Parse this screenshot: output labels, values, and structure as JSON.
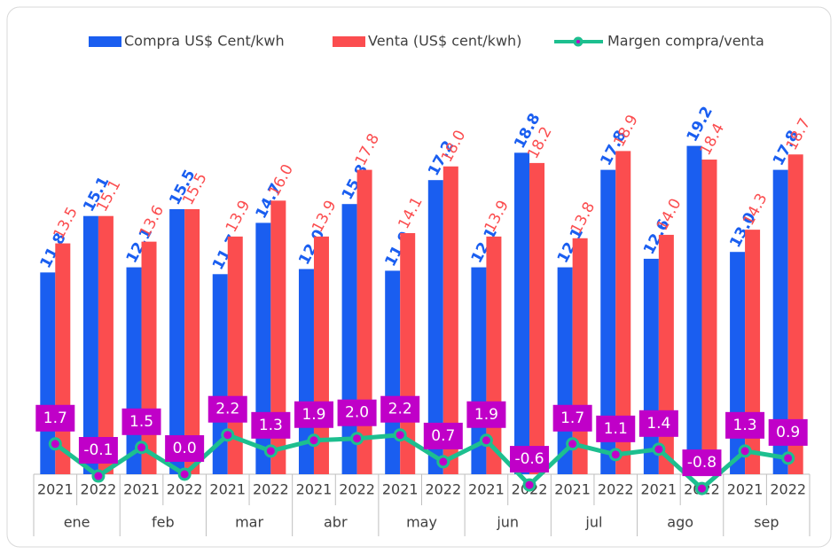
{
  "chart_data": {
    "type": "bar",
    "categories": [
      "2021",
      "2022",
      "2021",
      "2022",
      "2021",
      "2022",
      "2021",
      "2022",
      "2021",
      "2022",
      "2021",
      "2022",
      "2021",
      "2022",
      "2021",
      "2022",
      "2021",
      "2022"
    ],
    "category_groups": [
      "ene",
      "feb",
      "mar",
      "abr",
      "may",
      "jun",
      "jul",
      "ago",
      "sep"
    ],
    "ylim": [
      0,
      24
    ],
    "y2lim": [
      0,
      23
    ],
    "legend": "top",
    "series": [
      {
        "name": "Compra US$ Cent/kwh",
        "type": "bar",
        "color": "#1a5ef0",
        "values": [
          11.8,
          15.1,
          12.1,
          15.5,
          11.7,
          14.7,
          12.0,
          15.8,
          11.9,
          17.2,
          12.1,
          18.8,
          12.1,
          17.8,
          12.6,
          19.2,
          13.0,
          17.8
        ],
        "value_labels": [
          "11.8",
          "15.1",
          "12.1",
          "15.5",
          "11.7",
          "14.7",
          "12.0",
          "15.8",
          "11.9",
          "17.2",
          "12.1",
          "18.8",
          "12.1",
          "17.8",
          "12.6",
          "19.2",
          "13.0",
          "17.8"
        ]
      },
      {
        "name": "Venta (US$ cent/kwh)",
        "type": "bar",
        "color": "#fb4d4f",
        "values": [
          13.5,
          15.1,
          13.6,
          15.5,
          13.9,
          16.0,
          13.9,
          17.8,
          14.1,
          18.0,
          13.9,
          18.2,
          13.8,
          18.9,
          14.0,
          18.4,
          14.3,
          18.7
        ],
        "value_labels": [
          "13.5",
          "15.1",
          "13.6",
          "15.5",
          "13.9",
          "16.0",
          "13.9",
          "17.8",
          "14.1",
          "18.0",
          "13.9",
          "18.2",
          "13.8",
          "18.9",
          "14.0",
          "18.4",
          "14.3",
          "18.7"
        ]
      },
      {
        "name": "Margen compra/venta",
        "type": "line",
        "axis": "y2",
        "color": "#1dbf8f",
        "label_color": "#c000c8",
        "values": [
          1.7,
          -0.1,
          1.5,
          0.0,
          2.2,
          1.3,
          1.9,
          2.0,
          2.2,
          0.7,
          1.9,
          -0.6,
          1.7,
          1.1,
          1.4,
          -0.8,
          1.3,
          0.9
        ],
        "value_labels": [
          "1.7",
          "-0.1",
          "1.5",
          "0.0",
          "2.2",
          "1.3",
          "1.9",
          "2.0",
          "2.2",
          "0.7",
          "1.9",
          "-0.6",
          "1.7",
          "1.1",
          "1.4",
          "-0.8",
          "1.3",
          "0.9"
        ]
      }
    ]
  }
}
